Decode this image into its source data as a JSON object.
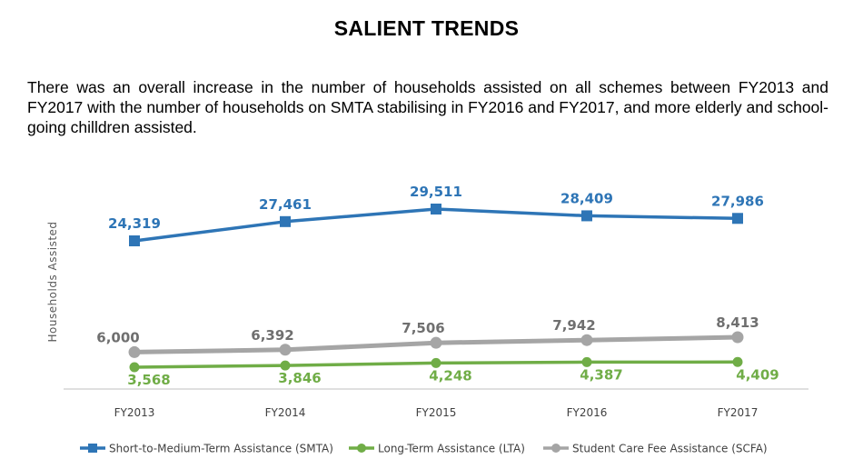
{
  "heading": "SALIENT TRENDS",
  "paragraph": "There was an overall increase in the number of households assisted on all schemes between FY2013 and FY2017 with the number of households on SMTA stabilising in FY2016 and FY2017, and more elderly and school-going chilldren assisted.",
  "chart_data": {
    "type": "line",
    "title": "",
    "xlabel": "",
    "ylabel": "Households Assisted",
    "categories": [
      "FY2013",
      "FY2014",
      "FY2015",
      "FY2016",
      "FY2017"
    ],
    "series": [
      {
        "name": "Short-to-Medium-Term Assistance (SMTA)",
        "values": [
          24319,
          27461,
          29511,
          28409,
          27986
        ],
        "labels": [
          "24,319",
          "27,461",
          "29,511",
          "28,409",
          "27,986"
        ],
        "color": "#2e75b6",
        "marker": "square"
      },
      {
        "name": "Long-Term Assistance (LTA)",
        "values": [
          3568,
          3846,
          4248,
          4387,
          4409
        ],
        "labels": [
          "3,568",
          "3,846",
          "4,248",
          "4,387",
          "4,409"
        ],
        "color": "#70ad47",
        "marker": "circle"
      },
      {
        "name": "Student Care Fee Assistance (SCFA)",
        "values": [
          6000,
          6392,
          7506,
          7942,
          8413
        ],
        "labels": [
          "6,000",
          "6,392",
          "7,506",
          "7,942",
          "8,413"
        ],
        "color": "#a5a5a5",
        "marker": "circle"
      }
    ],
    "y_axis_visible": false,
    "grid": false,
    "legend_position": "bottom"
  }
}
